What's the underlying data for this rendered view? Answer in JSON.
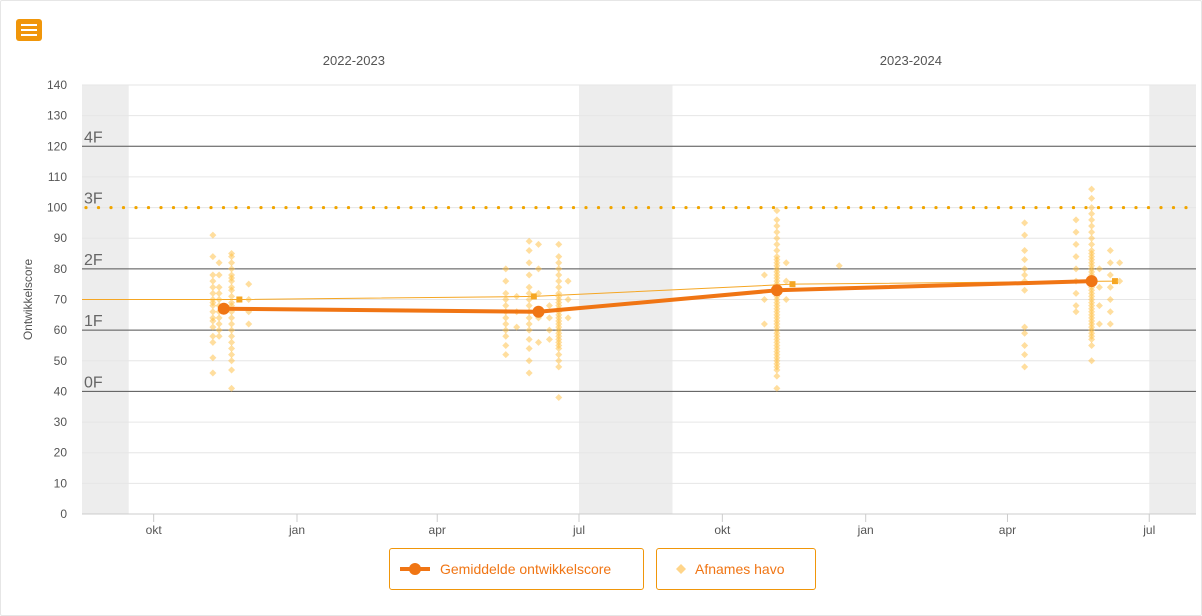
{
  "colors": {
    "average": "#f07514",
    "samples": "#ffbd3d",
    "trend": "#f5a623",
    "reference": "#f0a500",
    "level_line": "#555555",
    "shaded": "#ededed",
    "text": "#555555",
    "menu": "#f0960a"
  },
  "menu": {
    "icon": "hamburger-icon"
  },
  "chart_data": {
    "type": "scatter",
    "ylabel": "Ontwikkelscore",
    "xlabel": "",
    "ylim": [
      0,
      140
    ],
    "yticks": [
      0,
      10,
      20,
      30,
      40,
      50,
      60,
      70,
      80,
      90,
      100,
      110,
      120,
      130,
      140
    ],
    "xlim": [
      "2022-08-16",
      "2024-07-31"
    ],
    "x_ticks": [
      {
        "date": "2022-10-01",
        "label": "okt"
      },
      {
        "date": "2023-01-01",
        "label": "jan"
      },
      {
        "date": "2023-04-01",
        "label": "apr"
      },
      {
        "date": "2023-07-01",
        "label": "jul"
      },
      {
        "date": "2023-10-01",
        "label": "okt"
      },
      {
        "date": "2024-01-01",
        "label": "jan"
      },
      {
        "date": "2024-04-01",
        "label": "apr"
      },
      {
        "date": "2024-07-01",
        "label": "jul"
      }
    ],
    "school_years": [
      {
        "label": "2022-2023",
        "start": "2022-09-15",
        "end": "2023-07-01"
      },
      {
        "label": "2023-2024",
        "start": "2023-08-30",
        "end": "2024-07-01"
      }
    ],
    "shaded_periods": [
      {
        "start": "2022-08-16",
        "end": "2022-09-15"
      },
      {
        "start": "2023-07-01",
        "end": "2023-08-30"
      },
      {
        "start": "2024-07-01",
        "end": "2024-07-31"
      }
    ],
    "level_lines": [
      {
        "label": "0F",
        "y": 40
      },
      {
        "label": "1F",
        "y": 60
      },
      {
        "label": "2F",
        "y": 80
      },
      {
        "label": "3F",
        "y": 100,
        "style": "dotted"
      },
      {
        "label": "4F",
        "y": 120
      }
    ],
    "series": [
      {
        "name": "Gemiddelde ontwikkelscore",
        "type": "line",
        "points": [
          {
            "x": "2022-11-15",
            "y": 67
          },
          {
            "x": "2023-06-05",
            "y": 66
          },
          {
            "x": "2023-11-05",
            "y": 73
          },
          {
            "x": "2024-05-25",
            "y": 76
          }
        ]
      },
      {
        "name": "Afnames havo",
        "type": "scatter",
        "clusters": [
          {
            "x": "2022-11-08",
            "values": [
              91,
              84,
              78,
              76,
              74,
              72,
              70,
              69,
              68,
              66,
              64,
              63,
              61,
              58,
              56,
              51,
              46
            ]
          },
          {
            "x": "2022-11-12",
            "values": [
              82,
              78,
              74,
              72,
              70,
              68,
              66,
              64,
              62,
              60,
              58
            ]
          },
          {
            "x": "2022-11-20",
            "values": [
              85,
              84,
              82,
              80,
              78,
              77,
              76,
              74,
              73,
              71,
              69,
              68,
              66,
              64,
              62,
              60,
              58,
              56,
              54,
              52,
              50,
              47,
              41
            ]
          },
          {
            "x": "2022-12-01",
            "values": [
              75,
              70,
              66,
              62
            ]
          },
          {
            "x": "2023-05-15",
            "values": [
              80,
              76,
              72,
              70,
              68,
              66,
              64,
              62,
              60,
              58,
              55,
              52
            ]
          },
          {
            "x": "2023-05-22",
            "values": [
              71,
              66,
              61
            ]
          },
          {
            "x": "2023-05-30",
            "values": [
              89,
              86,
              82,
              78,
              74,
              72,
              70,
              68,
              66,
              64,
              62,
              60,
              57,
              54,
              50,
              46
            ]
          },
          {
            "x": "2023-06-05",
            "values": [
              88,
              80,
              72,
              64,
              56
            ]
          },
          {
            "x": "2023-06-12",
            "values": [
              68,
              64,
              60,
              57
            ]
          },
          {
            "x": "2023-06-18",
            "values": [
              88,
              84,
              82,
              80,
              78,
              76,
              74,
              72,
              71,
              70,
              69,
              68,
              67,
              66,
              65,
              64,
              63,
              62,
              61,
              60,
              59,
              58,
              57,
              56,
              55,
              54,
              52,
              50,
              48,
              38
            ]
          },
          {
            "x": "2023-06-24",
            "values": [
              76,
              70,
              64
            ]
          },
          {
            "x": "2023-10-28",
            "values": [
              78,
              70,
              62
            ]
          },
          {
            "x": "2023-11-05",
            "values": [
              99,
              96,
              94,
              92,
              90,
              88,
              86,
              84,
              83,
              82,
              81,
              80,
              79,
              78,
              77,
              76,
              75,
              74,
              73,
              72,
              71,
              70,
              69,
              68,
              67,
              66,
              65,
              64,
              63,
              62,
              61,
              60,
              59,
              58,
              57,
              56,
              55,
              54,
              53,
              52,
              51,
              50,
              49,
              48,
              47,
              45,
              41
            ]
          },
          {
            "x": "2023-11-11",
            "values": [
              82,
              76,
              70
            ]
          },
          {
            "x": "2023-12-15",
            "values": [
              81
            ]
          },
          {
            "x": "2024-04-12",
            "values": [
              95,
              91,
              86,
              83,
              80,
              78,
              76,
              73,
              61,
              59,
              55,
              52,
              48
            ]
          },
          {
            "x": "2024-05-15",
            "values": [
              96,
              92,
              88,
              84,
              80,
              76,
              72,
              68,
              66
            ]
          },
          {
            "x": "2024-05-25",
            "values": [
              106,
              103,
              100,
              98,
              96,
              94,
              92,
              90,
              88,
              86,
              85,
              84,
              83,
              82,
              81,
              80,
              79,
              78,
              77,
              76,
              75,
              74,
              73,
              72,
              71,
              70,
              69,
              68,
              67,
              66,
              65,
              64,
              63,
              62,
              61,
              60,
              59,
              58,
              57,
              55,
              50
            ]
          },
          {
            "x": "2024-05-30",
            "values": [
              80,
              74,
              68,
              62
            ]
          },
          {
            "x": "2024-06-06",
            "values": [
              86,
              82,
              78,
              74,
              70,
              66,
              62
            ]
          },
          {
            "x": "2024-06-12",
            "values": [
              82,
              76
            ]
          }
        ]
      },
      {
        "name": "",
        "type": "line",
        "style": "thin",
        "points": [
          {
            "x": "2022-08-16",
            "y": 70
          },
          {
            "x": "2022-11-25",
            "y": 70
          },
          {
            "x": "2023-06-02",
            "y": 71
          },
          {
            "x": "2023-11-15",
            "y": 75
          },
          {
            "x": "2024-06-09",
            "y": 76
          }
        ]
      }
    ],
    "reference_line": {
      "y": 100,
      "style": "dotted"
    },
    "legend": {
      "position": "bottom",
      "items": [
        "Gemiddelde ontwikkelscore",
        "Afnames havo"
      ]
    },
    "grid": true
  }
}
